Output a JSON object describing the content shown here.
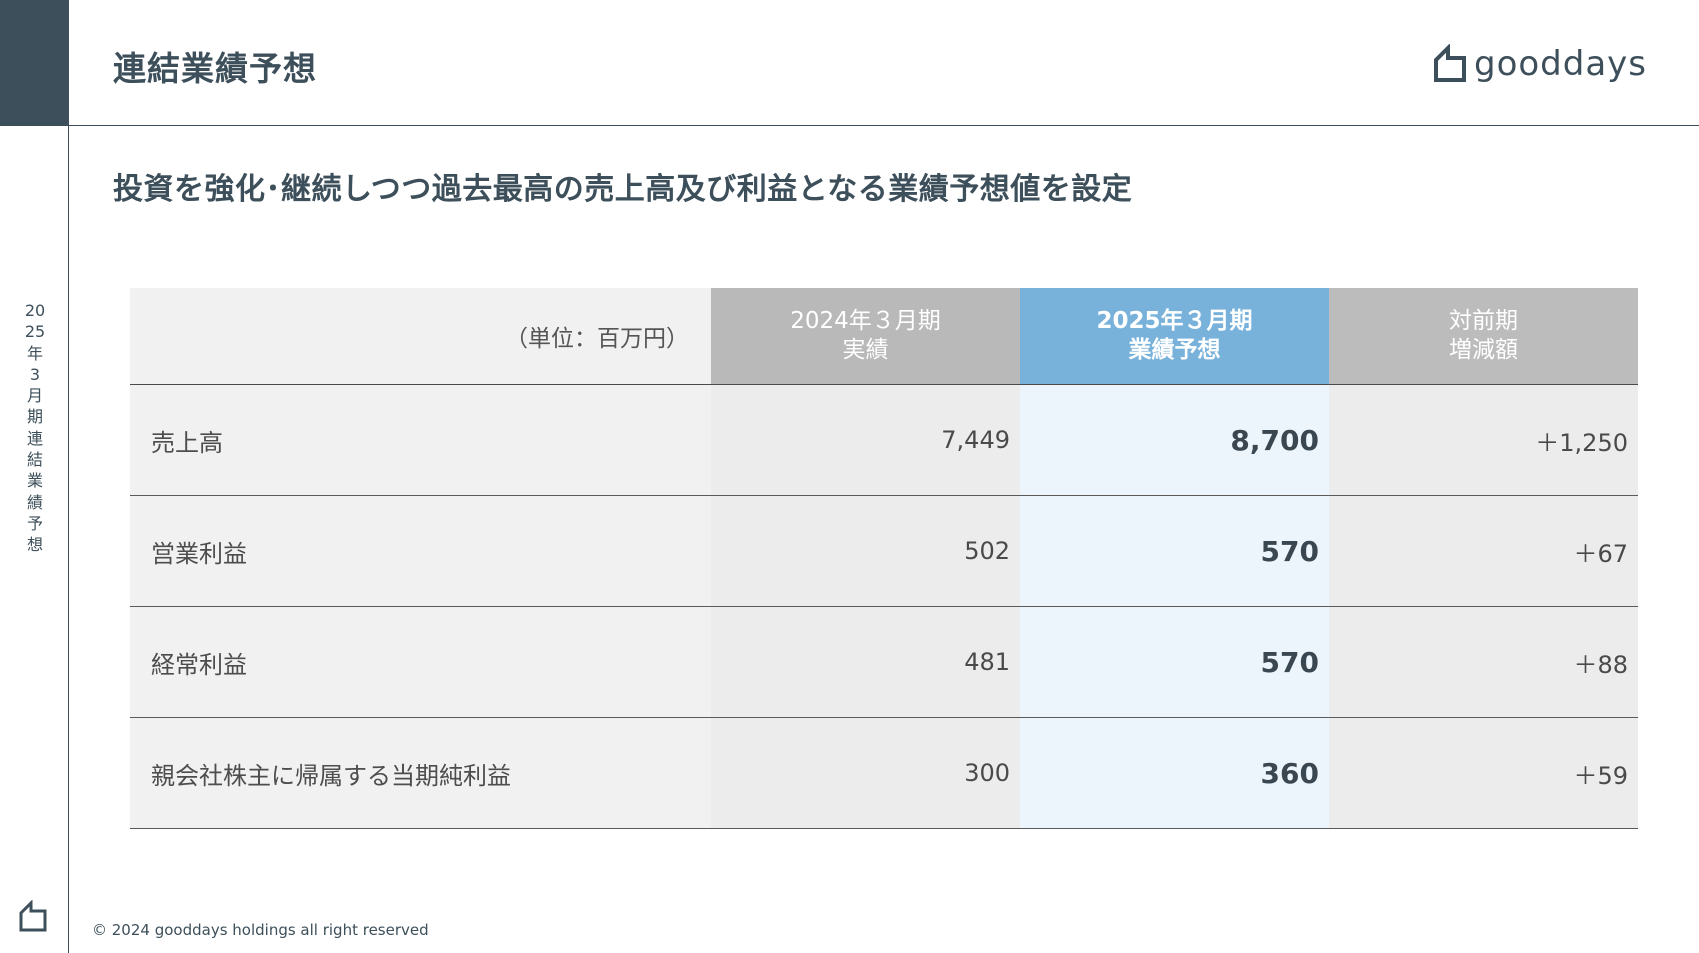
{
  "header": {
    "title": "連結業績予想",
    "logo_text": "gooddays"
  },
  "sidebar": {
    "vertical_label": "2025年3月期連結業績予想"
  },
  "subtitle": "投資を強化･継続しつつ過去最高の売上高及び利益となる業績予想値を設定",
  "table": {
    "unit_label": "（単位：百万円）",
    "columns": [
      {
        "line1": "2024年３月期",
        "line2": "実績"
      },
      {
        "line1": "2025年３月期",
        "line2": "業績予想"
      },
      {
        "line1": "対前期",
        "line2": "増減額"
      }
    ],
    "rows": [
      {
        "label": "売上高",
        "prev": "7,449",
        "cur": "8,700",
        "diff": "＋1,250"
      },
      {
        "label": "営業利益",
        "prev": "502",
        "cur": "570",
        "diff": "＋67"
      },
      {
        "label": "経常利益",
        "prev": "481",
        "cur": "570",
        "diff": "＋88"
      },
      {
        "label": "親会社株主に帰属する当期純利益",
        "prev": "300",
        "cur": "360",
        "diff": "＋59"
      }
    ]
  },
  "footer": {
    "copyright": "© 2024 gooddays holdings all right reserved"
  },
  "colors": {
    "primary": "#3d4f5a",
    "accent": "#78b2da",
    "header_gray": "#b9b9b9",
    "cur_col_bg": "#edf5fc"
  }
}
